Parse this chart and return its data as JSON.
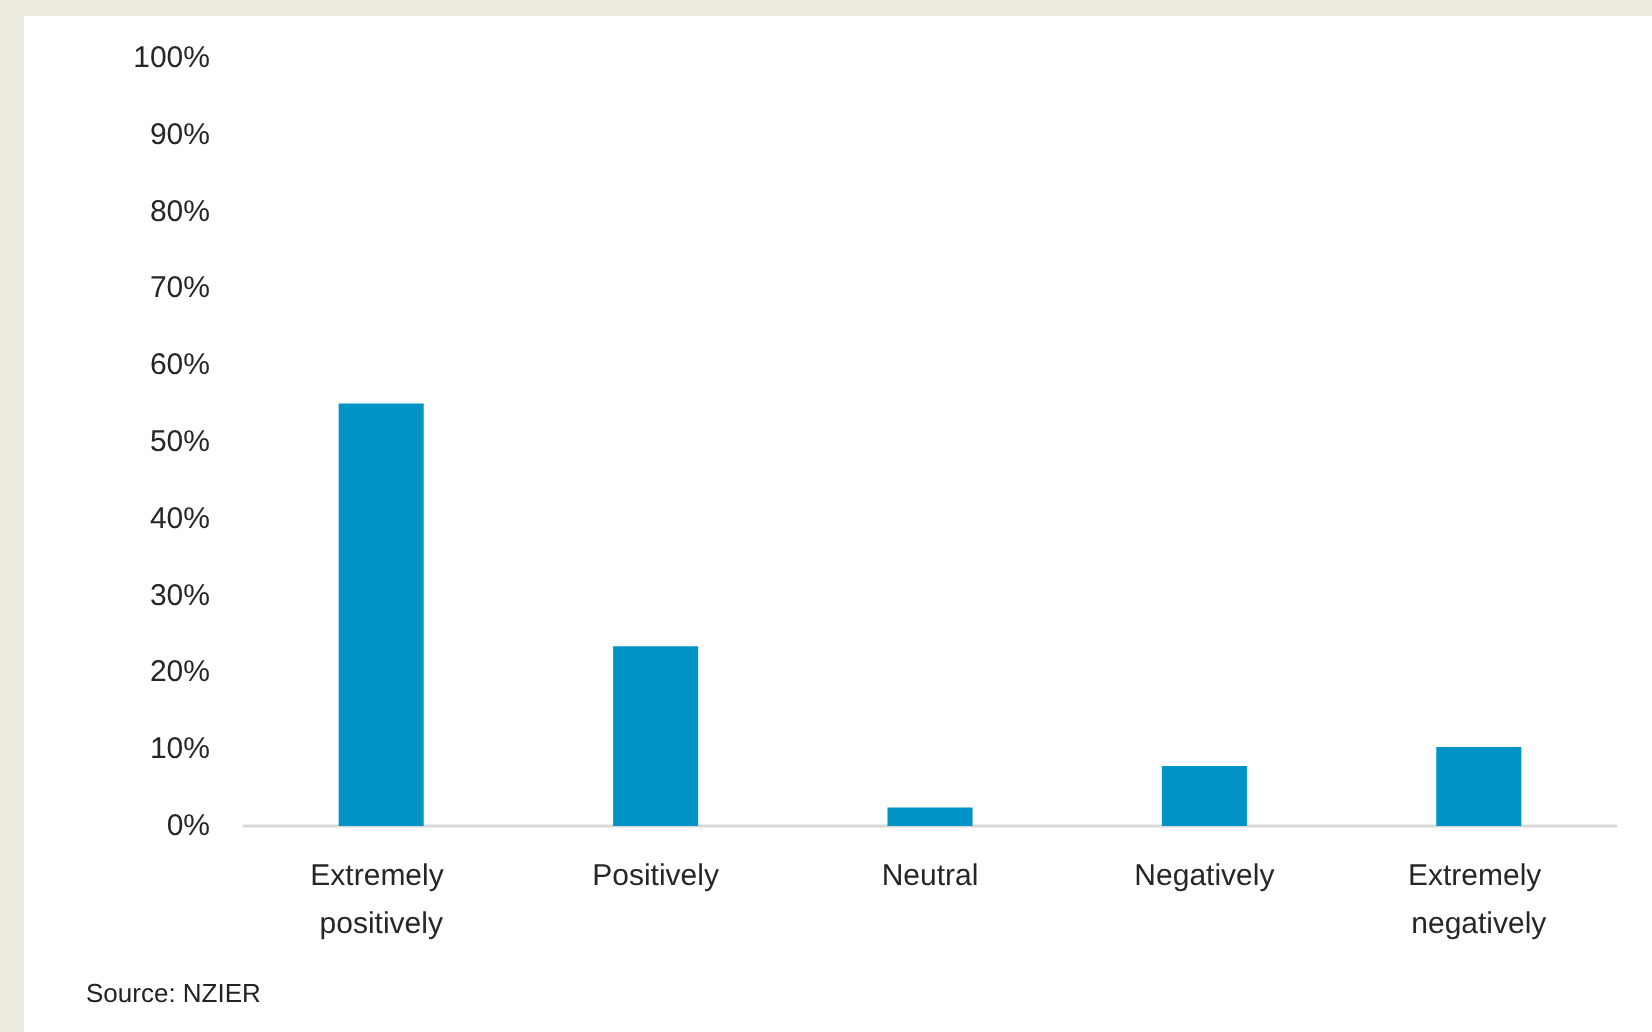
{
  "chart_data": {
    "type": "bar",
    "categories": [
      "Extremely positively",
      "Positively",
      "Neutral",
      "Negatively",
      "Extremely negatively"
    ],
    "values": [
      55,
      23.4,
      2.4,
      7.8,
      10.3
    ],
    "color": "#0094c6",
    "ylim": [
      0,
      100
    ],
    "yticks": [
      {
        "value": 0,
        "label": "0%"
      },
      {
        "value": 10,
        "label": "10%"
      },
      {
        "value": 20,
        "label": "20%"
      },
      {
        "value": 30,
        "label": "30%"
      },
      {
        "value": 40,
        "label": "40%"
      },
      {
        "value": 50,
        "label": "50%"
      },
      {
        "value": 60,
        "label": "60%"
      },
      {
        "value": 70,
        "label": "70%"
      },
      {
        "value": 80,
        "label": "80%"
      },
      {
        "value": 90,
        "label": "90%"
      },
      {
        "value": 100,
        "label": "100%"
      }
    ],
    "annotations": [
      "Source: NZIER"
    ]
  }
}
